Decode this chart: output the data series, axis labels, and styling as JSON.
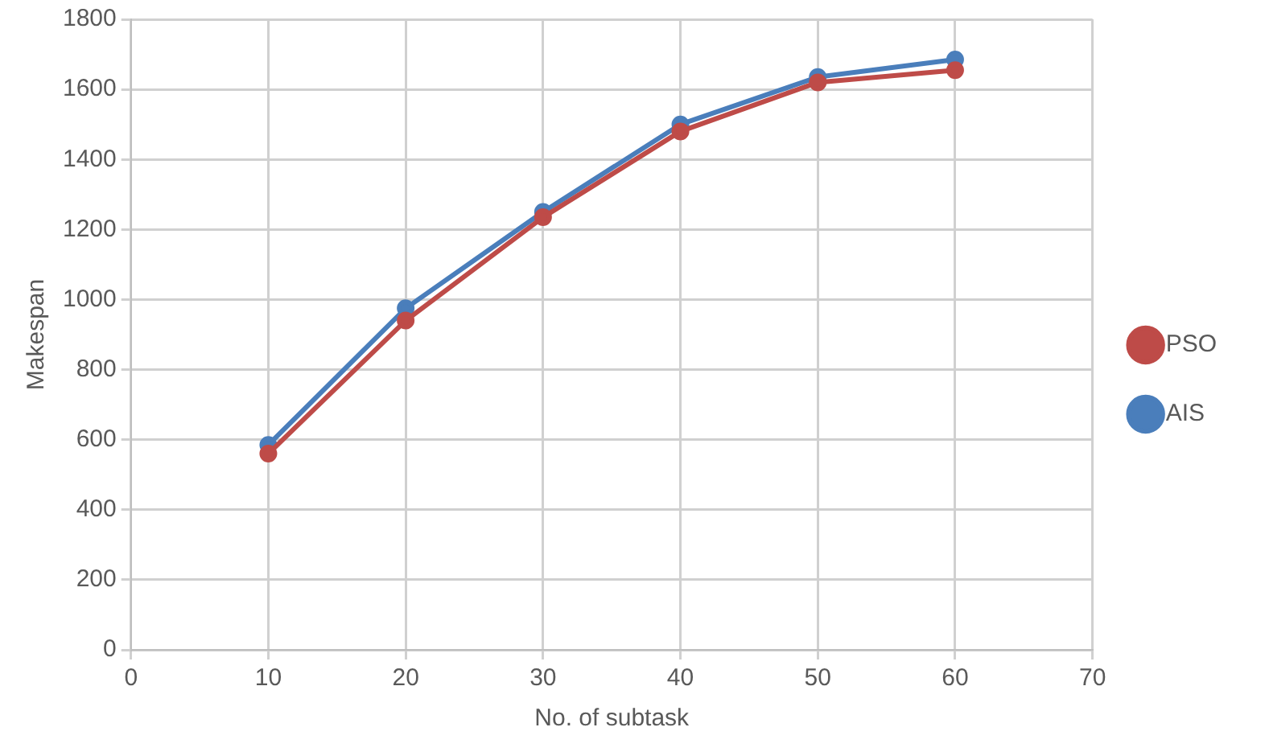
{
  "chart_data": {
    "type": "line",
    "xlabel": "No. of subtask",
    "ylabel": "Makespan",
    "x": [
      10,
      20,
      30,
      40,
      50,
      60
    ],
    "series": [
      {
        "name": "AIS",
        "color": "#4a7ebb",
        "values": [
          585,
          975,
          1250,
          1500,
          1635,
          1685
        ]
      },
      {
        "name": "PSO",
        "color": "#be4b48",
        "values": [
          560,
          940,
          1235,
          1480,
          1620,
          1655
        ]
      }
    ],
    "xlim": [
      0,
      70
    ],
    "xticks": [
      0,
      10,
      20,
      30,
      40,
      50,
      60,
      70
    ],
    "ylim": [
      0,
      1800
    ],
    "yticks": [
      0,
      200,
      400,
      600,
      800,
      1000,
      1200,
      1400,
      1600,
      1800
    ],
    "grid": true,
    "legend": "right",
    "marker": "circle",
    "line_style": "solid"
  }
}
